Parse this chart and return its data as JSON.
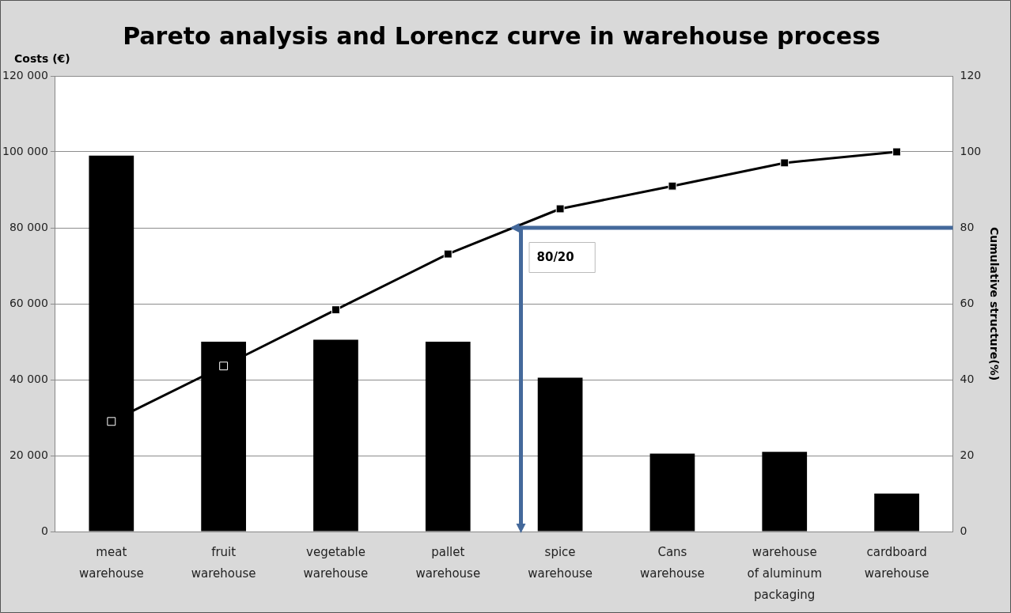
{
  "chart_data": {
    "type": "bar",
    "title": "Pareto analysis and Lorencz curve in warehouse process",
    "ylabel": "Costs (€)",
    "y2label": "Cumulative structure(%)",
    "categories": [
      "meat warehouse",
      "fruit warehouse",
      "vegetable warehouse",
      "pallet warehouse",
      "spice warehouse",
      "Cans warehouse",
      "warehouse of aluminum packaging",
      "cardboard warehouse"
    ],
    "series": [
      {
        "color": "#000000",
        "values": [
          99000,
          50000,
          50500,
          50000,
          40500,
          20500,
          21000,
          10000
        ]
      },
      {
        "type": "line",
        "axis": "y2",
        "color": "#000000",
        "marker": "square",
        "line_style": "solid",
        "values": [
          29,
          43.6,
          58.4,
          73.1,
          85,
          91,
          97.1,
          100
        ]
      }
    ],
    "ylim": [
      0,
      120000
    ],
    "yticks": [
      {
        "value": 0,
        "label": "0"
      },
      {
        "value": 20000,
        "label": "20 000"
      },
      {
        "value": 40000,
        "label": "40 000"
      },
      {
        "value": 60000,
        "label": "60 000"
      },
      {
        "value": 80000,
        "label": "80 000"
      },
      {
        "value": 100000,
        "label": "100 000"
      },
      {
        "value": 120000,
        "label": "120 000"
      }
    ],
    "y2lim": [
      0,
      120
    ],
    "y2ticks": [
      0,
      20,
      40,
      60,
      80,
      100,
      120
    ],
    "ref_lines": [
      {
        "axis": "y2",
        "value": 80,
        "label": "80/20",
        "color": "#44699b"
      }
    ],
    "grid": "y",
    "legend": false
  }
}
